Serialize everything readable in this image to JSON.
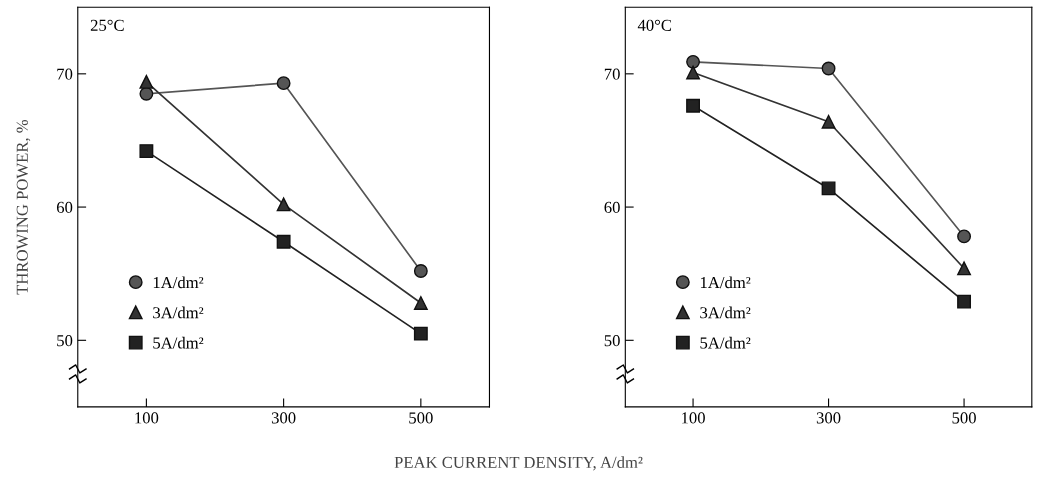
{
  "chart_data": [
    {
      "type": "line",
      "title": "25°C",
      "ylabel": "THROWING POWER, %",
      "xlabel": "PEAK CURRENT DENSITY, A/dm²",
      "x": [
        100,
        300,
        500
      ],
      "xlim": [
        0,
        600
      ],
      "xticks": [
        100,
        300,
        500
      ],
      "ylim": [
        45,
        75
      ],
      "yticks": [
        50,
        60,
        70
      ],
      "grid": false,
      "legend": "bottom left",
      "line_style": "solid",
      "series": [
        {
          "name": "1A/dm²",
          "color": "#555555",
          "marker": "circle",
          "values": [
            68.5,
            69.3,
            55.2
          ]
        },
        {
          "name": "3A/dm²",
          "color": "#333333",
          "marker": "triangle",
          "values": [
            69.4,
            60.2,
            52.8
          ]
        },
        {
          "name": "5A/dm²",
          "color": "#222222",
          "marker": "square",
          "values": [
            64.2,
            57.4,
            50.5
          ]
        }
      ]
    },
    {
      "type": "line",
      "title": "40°C",
      "x": [
        100,
        300,
        500
      ],
      "xlim": [
        0,
        600
      ],
      "xticks": [
        100,
        300,
        500
      ],
      "ylim": [
        45,
        75
      ],
      "yticks": [
        50,
        60,
        70
      ],
      "grid": false,
      "legend": "bottom left",
      "line_style": "solid",
      "series": [
        {
          "name": "1A/dm²",
          "color": "#555555",
          "marker": "circle",
          "values": [
            70.9,
            70.4,
            57.8
          ]
        },
        {
          "name": "3A/dm²",
          "color": "#333333",
          "marker": "triangle",
          "values": [
            70.1,
            66.4,
            55.4
          ]
        },
        {
          "name": "5A/dm²",
          "color": "#222222",
          "marker": "square",
          "values": [
            67.6,
            61.4,
            52.9
          ]
        }
      ]
    }
  ]
}
